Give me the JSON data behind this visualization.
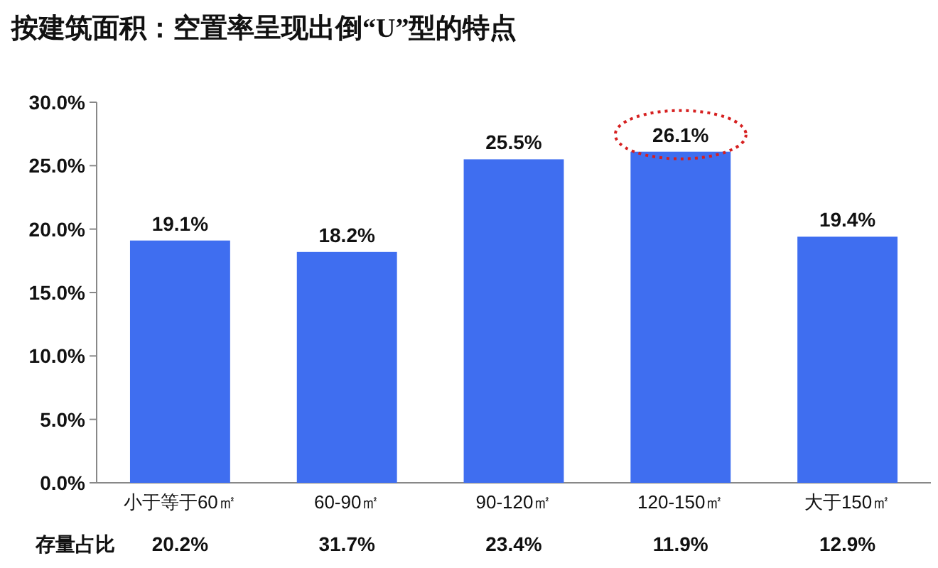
{
  "chart_data": {
    "type": "bar",
    "title": "按建筑面积：空置率呈现出倒“U”型的特点",
    "categories": [
      "小于等于60㎡",
      "60-90㎡",
      "90-120㎡",
      "120-150㎡",
      "大于150㎡"
    ],
    "values": [
      19.1,
      18.2,
      25.5,
      26.1,
      19.4
    ],
    "value_labels": [
      "19.1%",
      "18.2%",
      "25.5%",
      "26.1%",
      "19.4%"
    ],
    "color": "#3f6ef0",
    "ylim": [
      0,
      30
    ],
    "yticks": [
      {
        "value": 0,
        "label": "0.0%"
      },
      {
        "value": 5,
        "label": "5.0%"
      },
      {
        "value": 10,
        "label": "10.0%"
      },
      {
        "value": 15,
        "label": "15.0%"
      },
      {
        "value": 20,
        "label": "20.0%"
      },
      {
        "value": 25,
        "label": "25.0%"
      },
      {
        "value": 30,
        "label": "30.0%"
      }
    ],
    "annotations": [
      "存量占比",
      "20.2%",
      "31.7%",
      "23.4%",
      "11.9%",
      "12.9%"
    ]
  }
}
